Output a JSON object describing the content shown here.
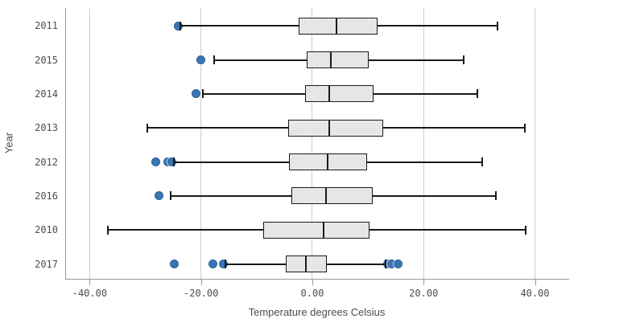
{
  "chart_data": {
    "type": "boxplot",
    "orientation": "horizontal",
    "xlabel": "Temperature degrees Celsius",
    "ylabel": "Year",
    "grid": true,
    "xlim": [
      -44.4,
      46.0
    ],
    "x_ticks": [
      {
        "value": -40,
        "label": "-40.00"
      },
      {
        "value": -20,
        "label": "-20.00"
      },
      {
        "value": 0,
        "label": "0.00"
      },
      {
        "value": 20,
        "label": "20.00"
      },
      {
        "value": 40,
        "label": "40.00"
      }
    ],
    "rows": [
      {
        "year": "2011",
        "outliers_low": [
          -24.1
        ],
        "whisker_low": -23.7,
        "q1": -2.4,
        "median": 4.4,
        "q3": 11.7,
        "whisker_high": 33.3,
        "outliers_high": []
      },
      {
        "year": "2015",
        "outliers_low": [
          -20.0
        ],
        "whisker_low": -17.7,
        "q1": -1.0,
        "median": 3.3,
        "q3": 10.2,
        "whisker_high": 27.2,
        "outliers_high": []
      },
      {
        "year": "2014",
        "outliers_low": [
          -20.9
        ],
        "whisker_low": -19.7,
        "q1": -1.3,
        "median": 3.1,
        "q3": 11.0,
        "whisker_high": 29.7,
        "outliers_high": []
      },
      {
        "year": "2013",
        "outliers_low": [],
        "whisker_low": -29.7,
        "q1": -4.4,
        "median": 3.0,
        "q3": 12.7,
        "whisker_high": 38.2,
        "outliers_high": []
      },
      {
        "year": "2012",
        "outliers_low": [
          -28.2,
          -26.0,
          -25.3
        ],
        "whisker_low": -24.9,
        "q1": -4.2,
        "median": 2.8,
        "q3": 9.8,
        "whisker_high": 30.5,
        "outliers_high": []
      },
      {
        "year": "2016",
        "outliers_low": [
          -27.5
        ],
        "whisker_low": -25.5,
        "q1": -3.7,
        "median": 2.5,
        "q3": 10.9,
        "whisker_high": 33.0,
        "outliers_high": []
      },
      {
        "year": "2010",
        "outliers_low": [],
        "whisker_low": -36.8,
        "q1": -8.8,
        "median": 2.1,
        "q3": 10.3,
        "whisker_high": 38.4,
        "outliers_high": []
      },
      {
        "year": "2017",
        "outliers_low": [
          -24.8,
          -17.9,
          -16.0
        ],
        "whisker_low": -15.6,
        "q1": -4.8,
        "median": -1.1,
        "q3": 2.6,
        "whisker_high": 13.2,
        "outliers_high": [
          13.6,
          14.3,
          15.4
        ]
      }
    ]
  },
  "colors": {
    "box_fill": "#e6e6e6",
    "box_border": "#1a1a1a",
    "whisker": "#1a1a1a",
    "outlier_fill": "#3b76b3",
    "outlier_border": "#2a5f99",
    "gridline": "#cccccc",
    "axis_line": "#999999",
    "text": "#4d4d4d"
  }
}
